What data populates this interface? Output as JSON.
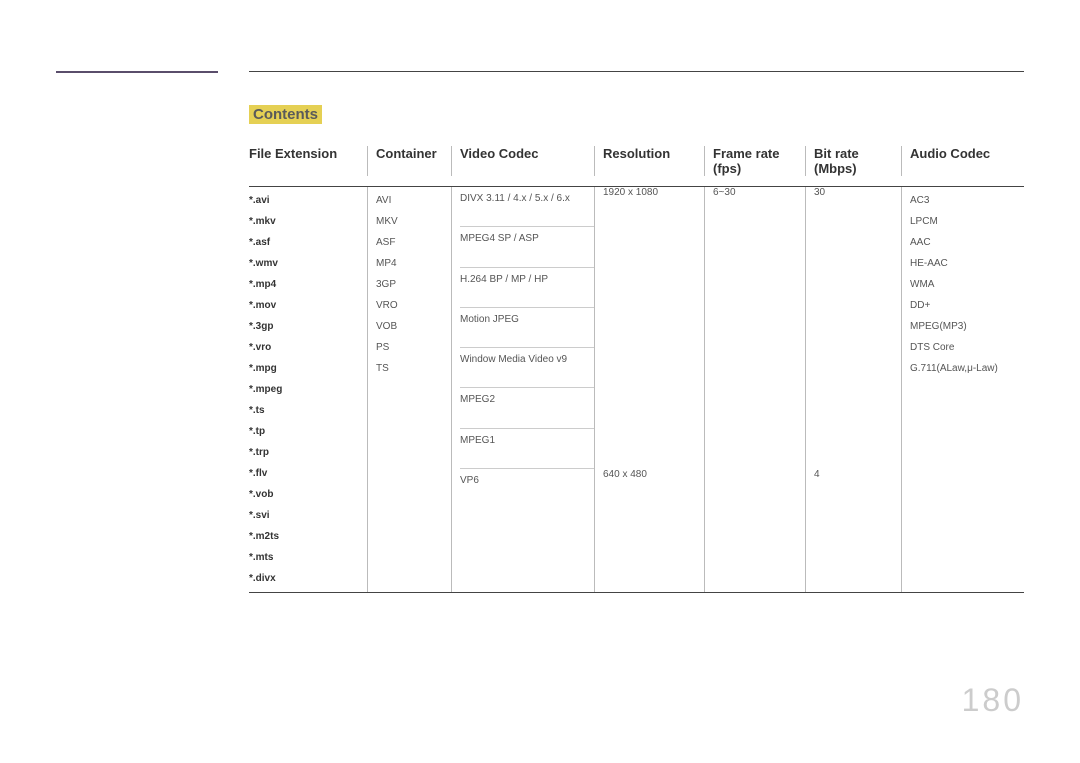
{
  "page": {
    "contents_label": "Contents",
    "page_number": "180"
  },
  "table": {
    "headers": {
      "file_extension": "File Extension",
      "container": "Container",
      "video_codec": "Video Codec",
      "resolution": "Resolution",
      "frame_rate": "Frame rate (fps)",
      "bit_rate": "Bit rate (Mbps)",
      "audio_codec": "Audio Codec"
    },
    "file_extensions": [
      "*.avi",
      "*.mkv",
      "*.asf",
      "*.wmv",
      "*.mp4",
      "*.mov",
      "*.3gp",
      "*.vro",
      "*.mpg",
      "*.mpeg",
      "*.ts",
      "*.tp",
      "*.trp",
      "*.flv",
      "*.vob",
      "*.svi",
      "*.m2ts",
      "*.mts",
      "*.divx"
    ],
    "containers": [
      "AVI",
      "MKV",
      "ASF",
      "MP4",
      "3GP",
      "VRO",
      "VOB",
      "PS",
      "TS"
    ],
    "video_codecs": [
      "DIVX 3.11 / 4.x / 5.x / 6.x",
      "MPEG4 SP / ASP",
      "H.264 BP / MP / HP",
      "Motion JPEG",
      "Window Media Video v9",
      "MPEG2",
      "MPEG1",
      "VP6"
    ],
    "resolution": {
      "r1": "1920 x 1080",
      "r2": "640 x 480"
    },
    "frame_rate": {
      "f1": "6~30",
      "f2": ""
    },
    "bit_rate": {
      "b1": "30",
      "b2": "4"
    },
    "audio_codecs": [
      "AC3",
      "LPCM",
      "AAC",
      "HE-AAC",
      "WMA",
      "DD+",
      "MPEG(MP3)",
      "DTS Core",
      "G.711(ALaw,μ-Law)"
    ]
  },
  "styling": {
    "accent_color": "#5a4d6b",
    "contents_bg": "#e5d054",
    "border_color": "#bbbbbb",
    "header_rule": "#444444",
    "text_color": "#555555",
    "header_text_color": "#333333",
    "page_number_color": "#cccccc",
    "background": "#ffffff",
    "header_font_size": 13,
    "body_font_size": 10,
    "page_number_font_size": 32
  }
}
